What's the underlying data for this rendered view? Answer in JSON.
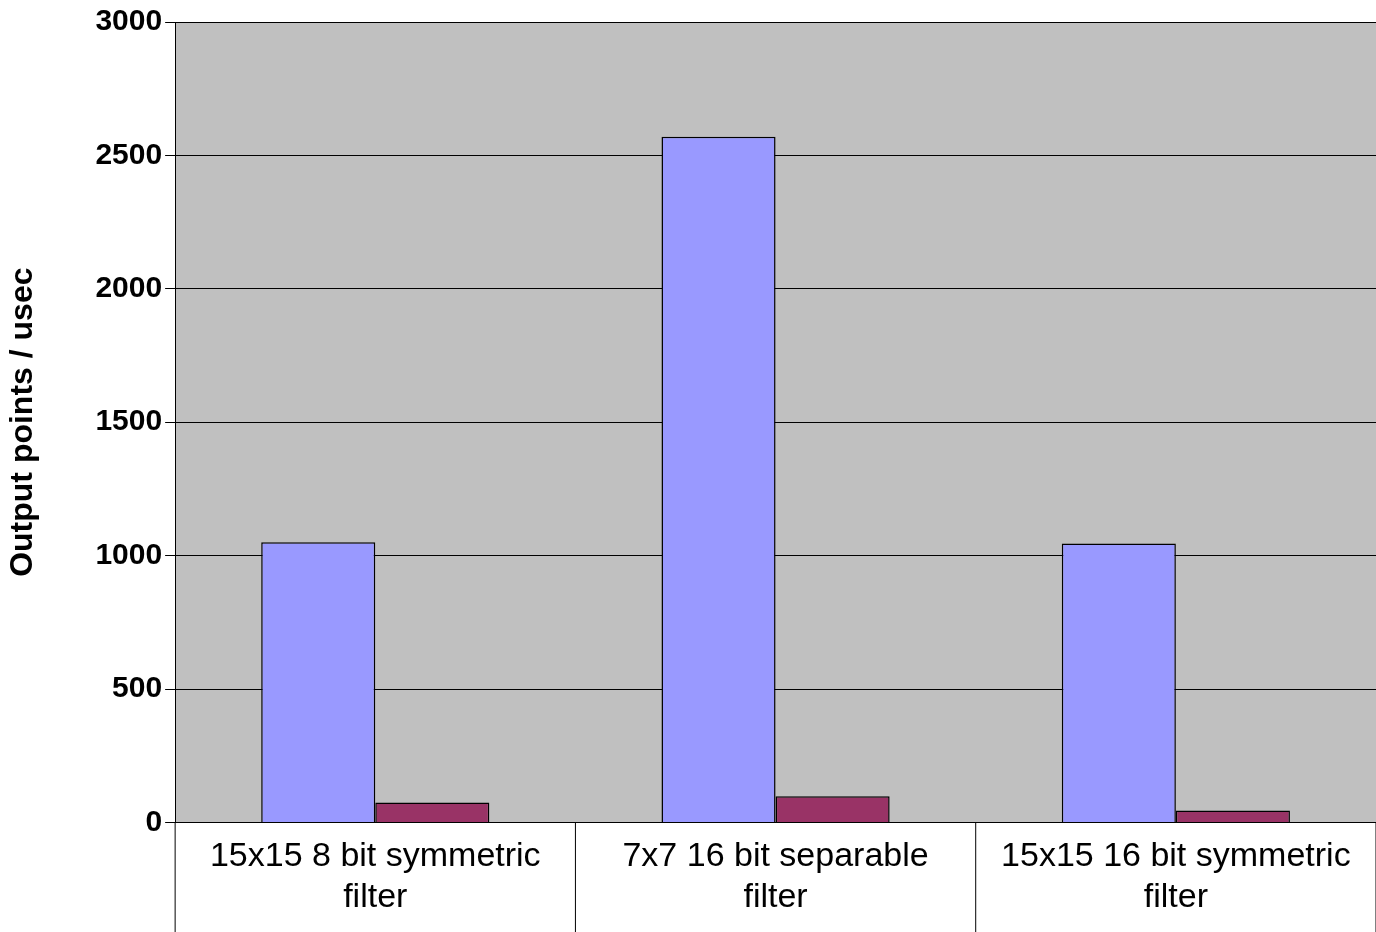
{
  "chart_data": {
    "type": "bar",
    "ylabel": "Output points / usec",
    "categories": [
      "15x15 8 bit symmetric filter",
      "7x7 16 bit separable filter",
      "15x15 16 bit symmetric filter"
    ],
    "series": [
      {
        "color": "#9999ff",
        "values": [
          1050,
          2570,
          1045
        ]
      },
      {
        "color": "#993366",
        "values": [
          75,
          98,
          45
        ]
      }
    ],
    "ylim": [
      0,
      3000
    ],
    "yticks": [
      0,
      500,
      1000,
      1500,
      2000,
      2500,
      3000
    ],
    "grid": "y",
    "legend": false
  }
}
